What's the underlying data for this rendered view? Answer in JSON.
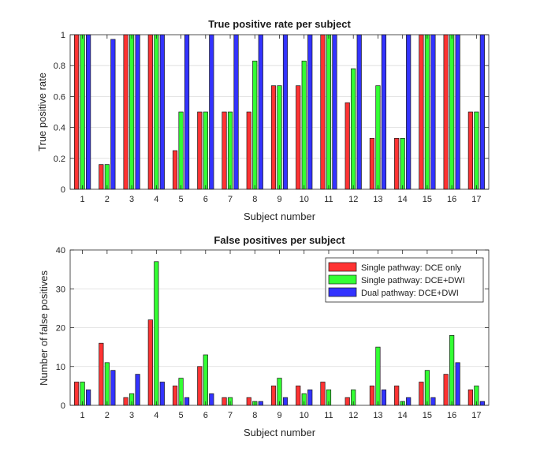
{
  "chart_data": [
    {
      "type": "bar",
      "title": "True positive rate per subject",
      "xlabel": "Subject number",
      "ylabel": "True positive rate",
      "ylim": [
        0,
        1
      ],
      "yticks": [
        "0",
        "0.2",
        "0.4",
        "0.6",
        "0.8",
        "1"
      ],
      "ytick_values": [
        0,
        0.2,
        0.4,
        0.6,
        0.8,
        1
      ],
      "grid": "horizontal",
      "categories": [
        "1",
        "2",
        "3",
        "4",
        "5",
        "6",
        "7",
        "8",
        "9",
        "10",
        "11",
        "12",
        "13",
        "14",
        "15",
        "16",
        "17"
      ],
      "series": [
        {
          "name": "Single pathway: DCE only",
          "color": "#ff3333",
          "values": [
            1,
            0.16,
            1,
            1,
            0.25,
            0.5,
            0.5,
            0.5,
            0.67,
            0.67,
            1,
            0.56,
            0.33,
            0.33,
            1,
            1,
            0.5
          ]
        },
        {
          "name": "Single pathway: DCE+DWI",
          "color": "#33ff33",
          "values": [
            1,
            0.16,
            1,
            1,
            0.5,
            0.5,
            0.5,
            0.83,
            0.67,
            0.83,
            1,
            0.78,
            0.67,
            0.33,
            1,
            1,
            0.5
          ]
        },
        {
          "name": "Dual pathway: DCE+DWI",
          "color": "#3333ff",
          "values": [
            1,
            0.97,
            1,
            1,
            1,
            1,
            1,
            1,
            1,
            1,
            1,
            1,
            1,
            1,
            1,
            1,
            1
          ]
        }
      ]
    },
    {
      "type": "bar",
      "title": "False positives per subject",
      "xlabel": "Subject number",
      "ylabel": "Number of false positives",
      "ylim": [
        0,
        40
      ],
      "yticks": [
        "0",
        "10",
        "20",
        "30",
        "40"
      ],
      "ytick_values": [
        0,
        10,
        20,
        30,
        40
      ],
      "grid": "horizontal",
      "legend_position": "top-right",
      "categories": [
        "1",
        "2",
        "3",
        "4",
        "5",
        "6",
        "7",
        "8",
        "9",
        "10",
        "11",
        "12",
        "13",
        "14",
        "15",
        "16",
        "17"
      ],
      "series": [
        {
          "name": "Single pathway: DCE only",
          "color": "#ff3333",
          "values": [
            6,
            16,
            2,
            22,
            5,
            10,
            2,
            2,
            5,
            5,
            6,
            2,
            5,
            5,
            6,
            8,
            4
          ]
        },
        {
          "name": "Single pathway: DCE+DWI",
          "color": "#33ff33",
          "values": [
            6,
            11,
            3,
            37,
            7,
            13,
            2,
            1,
            7,
            3,
            4,
            4,
            15,
            1,
            9,
            18,
            5
          ]
        },
        {
          "name": "Dual pathway: DCE+DWI",
          "color": "#3333ff",
          "values": [
            4,
            9,
            8,
            6,
            2,
            3,
            0,
            1,
            2,
            4,
            0,
            0,
            4,
            2,
            2,
            11,
            1
          ]
        }
      ]
    }
  ]
}
